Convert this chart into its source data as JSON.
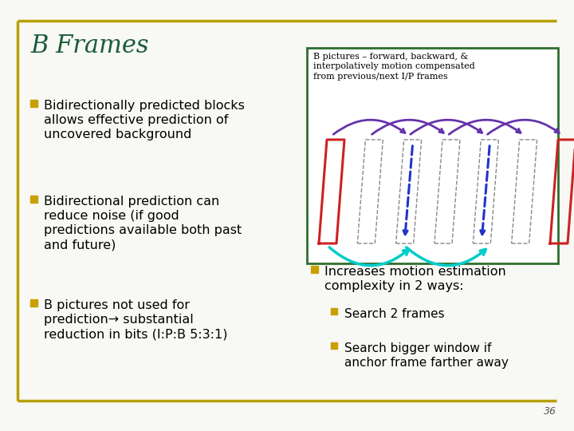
{
  "title": "B Frames",
  "title_color": "#1a5c38",
  "title_fontsize": 22,
  "bg_color": "#f8f8f4",
  "border_color": "#b8a000",
  "slide_number": "36",
  "left_bullets": [
    "Bidirectionally predicted blocks\nallows effective prediction of\nuncovered background",
    "Bidirectional prediction can\nreduce noise (if good\npredictions available both past\nand future)",
    "B pictures not used for\nprediction→ substantial\nreduction in bits (I:P:B 5:3:1)"
  ],
  "box_text": "B pictures – forward, backward, &\ninterpolatively motion compensated\nfrom previous/next I/P frames",
  "box_border_color": "#2e6e2e",
  "right_bullet_main": "Increases motion estimation\ncomplexity in 2 ways:",
  "right_sub_bullets": [
    "Search 2 frames",
    "Search bigger window if\nanchor frame farther away"
  ],
  "bullet_color": "#c8a000",
  "text_color": "#000000",
  "frame_colors": {
    "red": "#cc2222",
    "dashed": "#888888",
    "purple_arrow": "#6633aa",
    "blue_arrow": "#2233cc",
    "cyan_arrow": "#00cccc"
  }
}
